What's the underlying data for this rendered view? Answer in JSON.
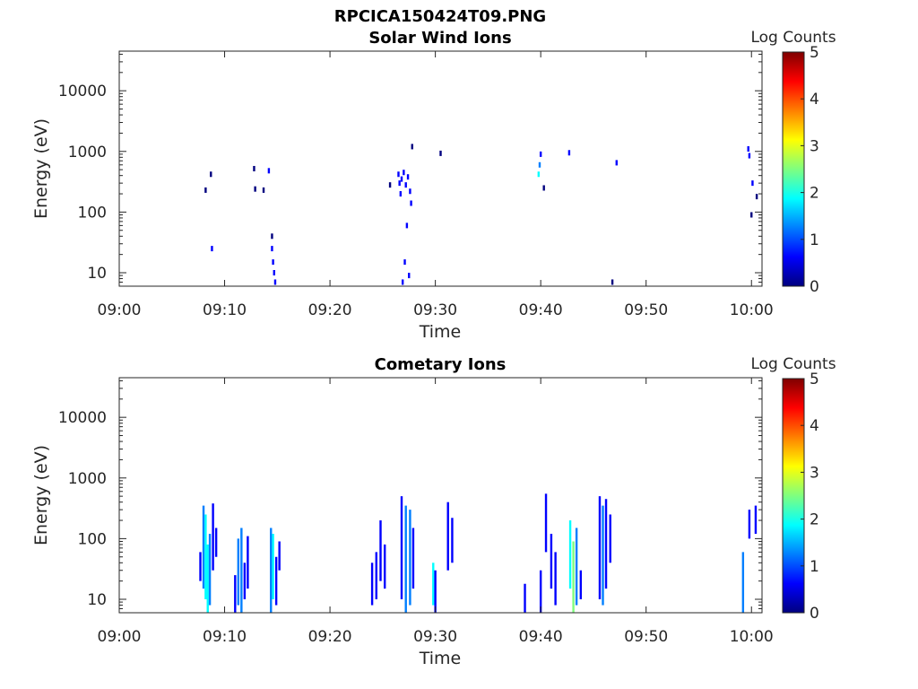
{
  "figure_title": "RPCICA150424T09.PNG",
  "colormap": [
    "#00007f",
    "#0000ff",
    "#007fff",
    "#00ffff",
    "#7fff7f",
    "#ffff00",
    "#ff7f00",
    "#ff0000",
    "#7f0000"
  ],
  "chart_data": [
    {
      "type": "heatmap",
      "title": "Solar Wind Ions",
      "xlabel": "Time",
      "ylabel": "Energy (eV)",
      "x_ticks": [
        "09:00",
        "09:10",
        "09:20",
        "09:30",
        "09:40",
        "09:50",
        "10:00"
      ],
      "x_range_min": [
        0,
        61
      ],
      "y_scale": "log",
      "y_ticks": [
        10,
        100,
        1000,
        10000
      ],
      "y_tick_labels": [
        "10",
        "100",
        "1000",
        "10000"
      ],
      "ylim": [
        6,
        45000
      ],
      "colorbar": {
        "label": "Log Counts",
        "ticks": [
          "0",
          "1",
          "2",
          "3",
          "4",
          "5"
        ],
        "range": [
          0,
          5
        ]
      },
      "cells_t_e_logcount": [
        [
          8.2,
          230,
          0.3
        ],
        [
          8.7,
          420,
          0.3
        ],
        [
          8.8,
          25,
          0.4
        ],
        [
          12.8,
          520,
          0.3
        ],
        [
          12.9,
          240,
          0.3
        ],
        [
          13.7,
          230,
          0.3
        ],
        [
          14.2,
          480,
          0.4
        ],
        [
          14.5,
          40,
          0.3
        ],
        [
          14.5,
          25,
          0.4
        ],
        [
          14.6,
          15,
          0.4
        ],
        [
          14.7,
          10,
          0.6
        ],
        [
          14.8,
          7,
          0.5
        ],
        [
          25.7,
          280,
          0.3
        ],
        [
          26.5,
          420,
          0.5
        ],
        [
          26.6,
          300,
          0.6
        ],
        [
          26.7,
          200,
          0.7
        ],
        [
          26.8,
          350,
          0.8
        ],
        [
          27.0,
          450,
          0.6
        ],
        [
          27.2,
          280,
          0.8
        ],
        [
          27.4,
          380,
          0.7
        ],
        [
          27.6,
          220,
          0.7
        ],
        [
          27.7,
          140,
          0.5
        ],
        [
          27.3,
          60,
          0.4
        ],
        [
          27.1,
          15,
          0.4
        ],
        [
          27.5,
          9,
          0.5
        ],
        [
          26.9,
          7,
          0.7
        ],
        [
          27.8,
          1200,
          0.3
        ],
        [
          30.5,
          930,
          0.3
        ],
        [
          39.8,
          420,
          1.8
        ],
        [
          39.9,
          600,
          1.0
        ],
        [
          40.0,
          900,
          0.8
        ],
        [
          40.3,
          250,
          0.3
        ],
        [
          42.7,
          950,
          0.4
        ],
        [
          46.8,
          7,
          0.3
        ],
        [
          47.2,
          650,
          0.6
        ],
        [
          59.7,
          1100,
          0.5
        ],
        [
          59.8,
          850,
          0.6
        ],
        [
          60.1,
          300,
          0.5
        ],
        [
          60.0,
          90,
          0.3
        ],
        [
          60.5,
          180,
          0.3
        ]
      ]
    },
    {
      "type": "heatmap",
      "title": "Cometary Ions",
      "xlabel": "Time",
      "ylabel": "Energy (eV)",
      "x_ticks": [
        "09:00",
        "09:10",
        "09:20",
        "09:30",
        "09:40",
        "09:50",
        "10:00"
      ],
      "x_range_min": [
        0,
        61
      ],
      "y_scale": "log",
      "y_ticks": [
        10,
        100,
        1000,
        10000
      ],
      "y_tick_labels": [
        "10",
        "100",
        "1000",
        "10000"
      ],
      "ylim": [
        6,
        45000
      ],
      "colorbar": {
        "label": "Log Counts",
        "ticks": [
          "0",
          "1",
          "2",
          "3",
          "4",
          "5"
        ],
        "range": [
          0,
          5
        ]
      },
      "columns_t_emin_emax_logcount": [
        [
          7.7,
          20,
          60,
          0.8
        ],
        [
          8.0,
          15,
          350,
          1.2
        ],
        [
          8.2,
          10,
          250,
          1.6
        ],
        [
          8.4,
          6,
          80,
          2.0
        ],
        [
          8.6,
          8,
          120,
          1.0
        ],
        [
          8.9,
          30,
          380,
          0.6
        ],
        [
          9.2,
          50,
          150,
          0.5
        ],
        [
          11.0,
          6,
          25,
          0.6
        ],
        [
          11.3,
          8,
          100,
          1.0
        ],
        [
          11.6,
          6,
          150,
          1.4
        ],
        [
          11.9,
          10,
          40,
          0.7
        ],
        [
          12.2,
          15,
          110,
          0.6
        ],
        [
          14.4,
          6,
          150,
          1.4
        ],
        [
          14.6,
          10,
          120,
          1.6
        ],
        [
          14.9,
          8,
          50,
          0.8
        ],
        [
          15.2,
          30,
          90,
          0.5
        ],
        [
          24.0,
          8,
          40,
          0.6
        ],
        [
          24.4,
          10,
          60,
          0.6
        ],
        [
          24.8,
          20,
          200,
          0.5
        ],
        [
          25.2,
          15,
          80,
          0.7
        ],
        [
          26.8,
          10,
          500,
          0.8
        ],
        [
          27.2,
          6,
          350,
          1.4
        ],
        [
          27.6,
          8,
          300,
          1.0
        ],
        [
          27.9,
          15,
          150,
          0.7
        ],
        [
          29.8,
          8,
          40,
          1.6
        ],
        [
          30.0,
          6,
          30,
          0.8
        ],
        [
          31.2,
          30,
          400,
          0.5
        ],
        [
          31.6,
          40,
          220,
          0.4
        ],
        [
          38.5,
          6,
          18,
          0.5
        ],
        [
          40.0,
          6,
          30,
          0.6
        ],
        [
          40.5,
          60,
          550,
          0.6
        ],
        [
          41.0,
          15,
          120,
          0.8
        ],
        [
          41.4,
          8,
          60,
          0.6
        ],
        [
          42.8,
          15,
          200,
          1.6
        ],
        [
          43.1,
          6,
          90,
          2.4
        ],
        [
          43.4,
          8,
          150,
          1.0
        ],
        [
          43.8,
          10,
          30,
          0.6
        ],
        [
          45.6,
          10,
          500,
          0.8
        ],
        [
          45.9,
          8,
          350,
          1.0
        ],
        [
          46.2,
          15,
          450,
          0.6
        ],
        [
          46.6,
          40,
          250,
          0.5
        ],
        [
          59.2,
          6,
          60,
          1.0
        ],
        [
          59.8,
          100,
          300,
          0.4
        ],
        [
          60.4,
          120,
          350,
          0.4
        ]
      ]
    }
  ]
}
